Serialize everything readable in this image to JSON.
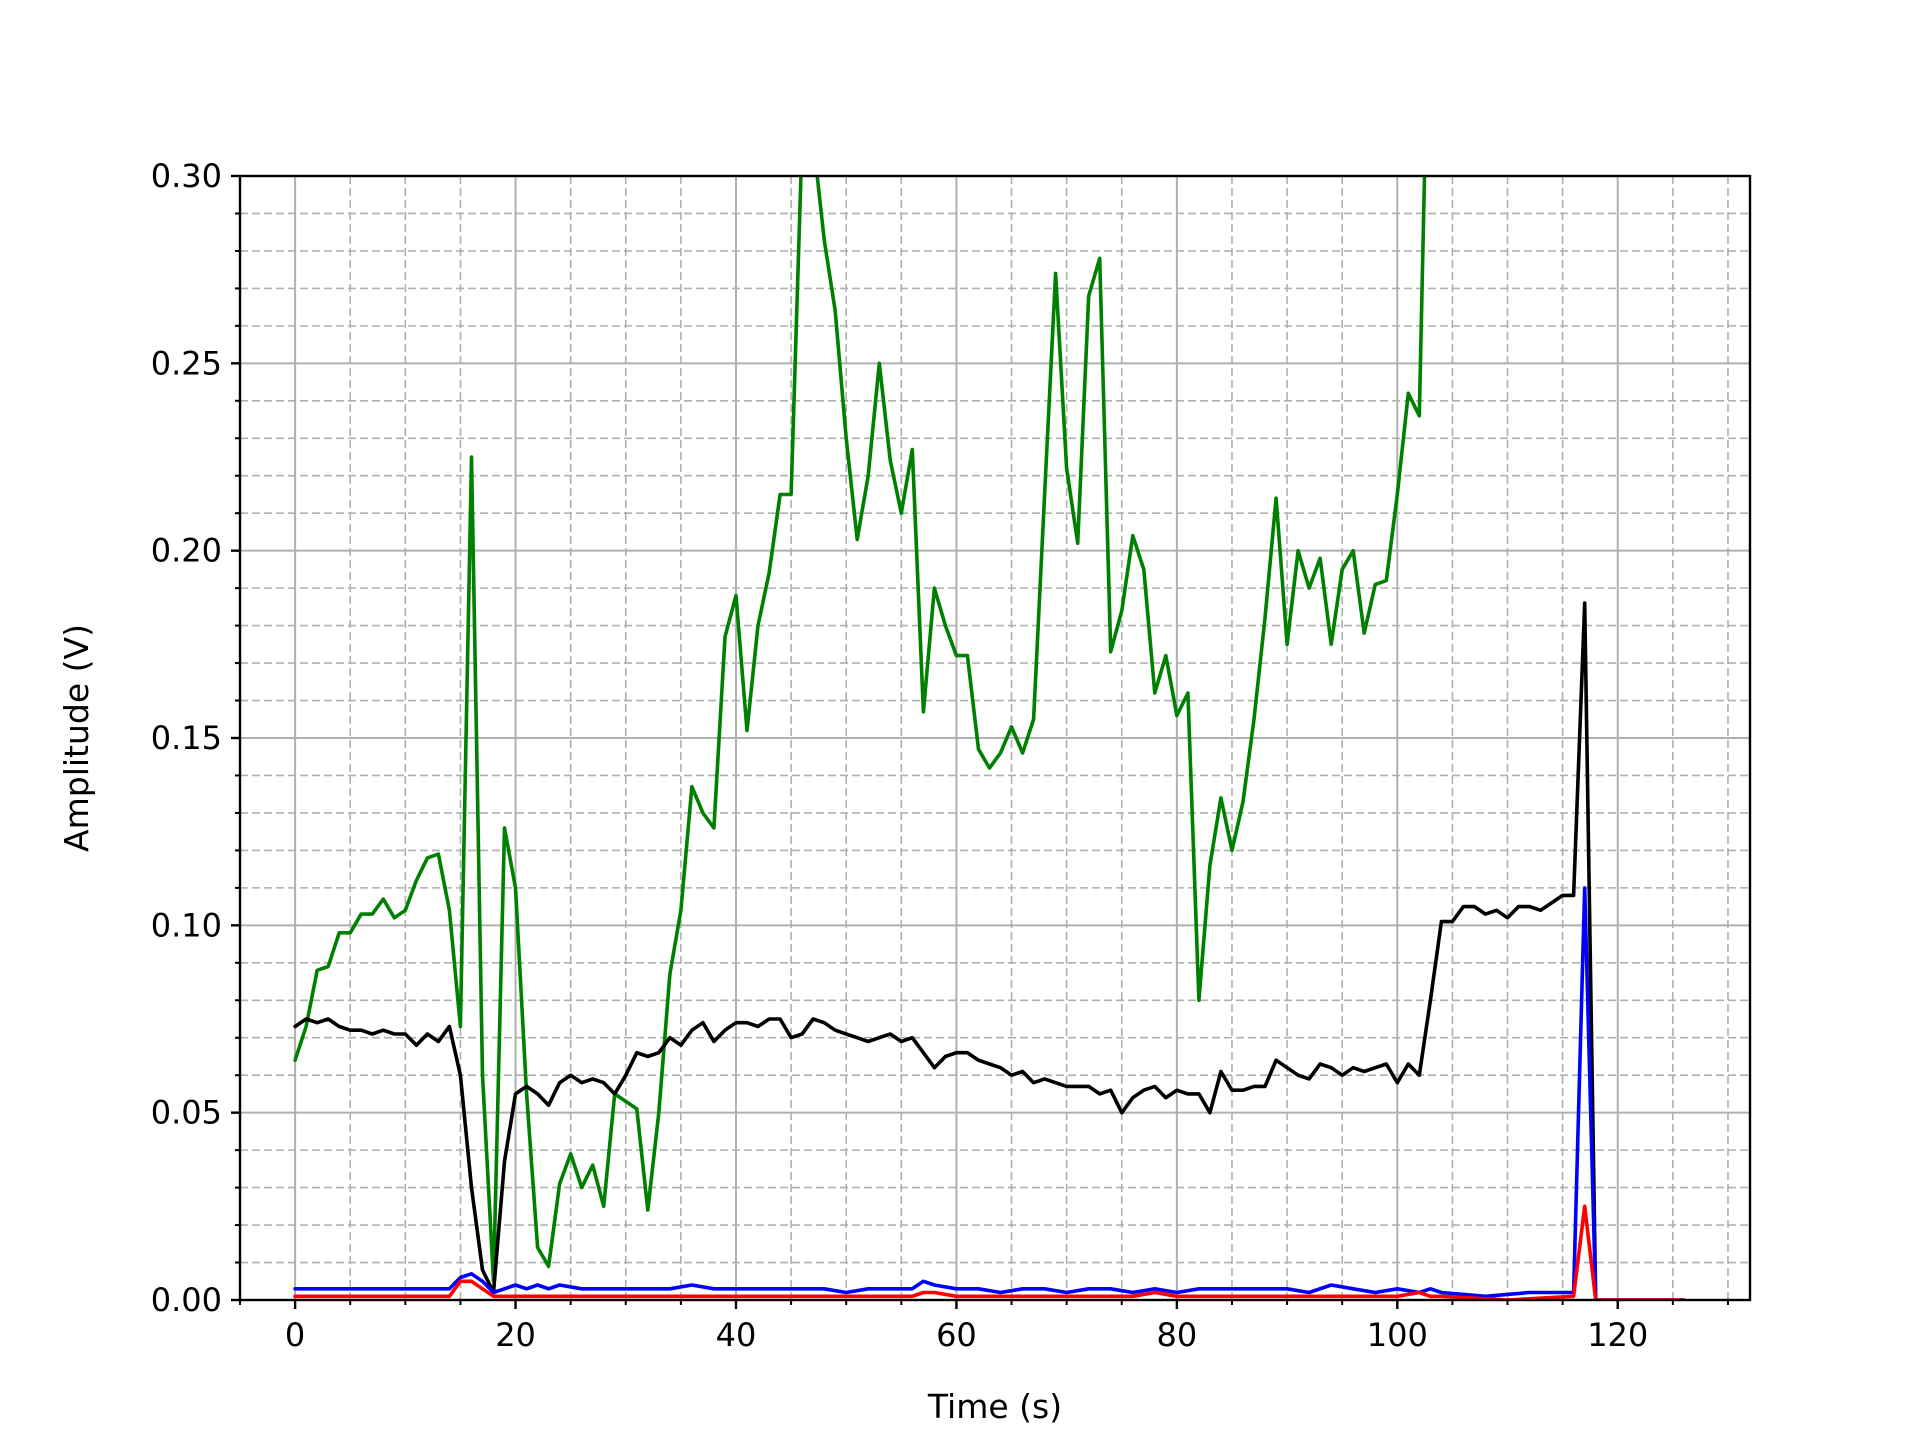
{
  "chart_data": {
    "type": "line",
    "title": "",
    "xlabel": "Time (s)",
    "ylabel": "Amplitude (V)",
    "xlim": [
      -5,
      132
    ],
    "ylim": [
      0,
      0.3
    ],
    "grid": true,
    "grid_minor": true,
    "xticks": [
      0,
      20,
      40,
      60,
      80,
      100,
      120
    ],
    "xtick_labels": [
      "0",
      "20",
      "40",
      "60",
      "80",
      "100",
      "120"
    ],
    "yticks": [
      0,
      0.05,
      0.1,
      0.15,
      0.2,
      0.25,
      0.3
    ],
    "ytick_labels": [
      "0.00",
      "0.05",
      "0.10",
      "0.15",
      "0.20",
      "0.25",
      "0.30"
    ],
    "x_minor_step": 5,
    "y_minor_step": 0.01,
    "series": [
      {
        "name": "green",
        "color": "#008000",
        "x": [
          0,
          1,
          2,
          3,
          4,
          5,
          6,
          7,
          8,
          9,
          10,
          11,
          12,
          13,
          14,
          15,
          16,
          17,
          18,
          19,
          20,
          21,
          22,
          23,
          24,
          25,
          26,
          27,
          28,
          29,
          30,
          31,
          32,
          33,
          34,
          35,
          36,
          37,
          38,
          39,
          40,
          41,
          42,
          43,
          44,
          45,
          46,
          47,
          48,
          49,
          50,
          51,
          52,
          53,
          54,
          55,
          56,
          57,
          58,
          59,
          60,
          61,
          62,
          63,
          64,
          65,
          66,
          67,
          68,
          69,
          70,
          71,
          72,
          73,
          74,
          75,
          76,
          77,
          78,
          79,
          80,
          81,
          82,
          83,
          84,
          85,
          86,
          87,
          88,
          89,
          90,
          91,
          92,
          93,
          94,
          95,
          96,
          97,
          98,
          99,
          100,
          101,
          102,
          102.5
        ],
        "values": [
          0.064,
          0.073,
          0.088,
          0.089,
          0.098,
          0.098,
          0.103,
          0.103,
          0.107,
          0.102,
          0.104,
          0.112,
          0.118,
          0.119,
          0.104,
          0.073,
          0.225,
          0.06,
          0.005,
          0.126,
          0.11,
          0.055,
          0.014,
          0.009,
          0.031,
          0.039,
          0.03,
          0.036,
          0.025,
          0.055,
          0.053,
          0.051,
          0.024,
          0.05,
          0.087,
          0.104,
          0.137,
          0.13,
          0.126,
          0.177,
          0.188,
          0.152,
          0.18,
          0.194,
          0.215,
          0.215,
          0.31,
          0.31,
          0.283,
          0.264,
          0.23,
          0.203,
          0.22,
          0.25,
          0.224,
          0.21,
          0.227,
          0.157,
          0.19,
          0.18,
          0.172,
          0.172,
          0.147,
          0.142,
          0.146,
          0.153,
          0.146,
          0.155,
          0.215,
          0.274,
          0.222,
          0.202,
          0.268,
          0.278,
          0.173,
          0.184,
          0.204,
          0.195,
          0.162,
          0.172,
          0.156,
          0.162,
          0.08,
          0.116,
          0.134,
          0.12,
          0.133,
          0.155,
          0.182,
          0.214,
          0.175,
          0.2,
          0.19,
          0.198,
          0.175,
          0.195,
          0.2,
          0.178,
          0.191,
          0.192,
          0.215,
          0.242,
          0.236,
          0.305
        ]
      },
      {
        "name": "black",
        "color": "#000000",
        "x": [
          0,
          1,
          2,
          3,
          4,
          5,
          6,
          7,
          8,
          9,
          10,
          11,
          12,
          13,
          14,
          15,
          16,
          17,
          18,
          19,
          20,
          21,
          22,
          23,
          24,
          25,
          26,
          27,
          28,
          29,
          30,
          31,
          32,
          33,
          34,
          35,
          36,
          37,
          38,
          39,
          40,
          41,
          42,
          43,
          44,
          45,
          46,
          47,
          48,
          49,
          50,
          51,
          52,
          53,
          54,
          55,
          56,
          57,
          58,
          59,
          60,
          61,
          62,
          63,
          64,
          65,
          66,
          67,
          68,
          69,
          70,
          71,
          72,
          73,
          74,
          75,
          76,
          77,
          78,
          79,
          80,
          81,
          82,
          83,
          84,
          85,
          86,
          87,
          88,
          89,
          90,
          91,
          92,
          93,
          94,
          95,
          96,
          97,
          98,
          99,
          100,
          101,
          102,
          103,
          104,
          105,
          106,
          107,
          108,
          109,
          110,
          111,
          112,
          113,
          114,
          115,
          116,
          117,
          118
        ],
        "values": [
          0.073,
          0.075,
          0.074,
          0.075,
          0.073,
          0.072,
          0.072,
          0.071,
          0.072,
          0.071,
          0.071,
          0.068,
          0.071,
          0.069,
          0.073,
          0.06,
          0.03,
          0.008,
          0.002,
          0.037,
          0.055,
          0.057,
          0.055,
          0.052,
          0.058,
          0.06,
          0.058,
          0.059,
          0.058,
          0.055,
          0.06,
          0.066,
          0.065,
          0.066,
          0.07,
          0.068,
          0.072,
          0.074,
          0.069,
          0.072,
          0.074,
          0.074,
          0.073,
          0.075,
          0.075,
          0.07,
          0.071,
          0.075,
          0.074,
          0.072,
          0.071,
          0.07,
          0.069,
          0.07,
          0.071,
          0.069,
          0.07,
          0.066,
          0.062,
          0.065,
          0.066,
          0.066,
          0.064,
          0.063,
          0.062,
          0.06,
          0.061,
          0.058,
          0.059,
          0.058,
          0.057,
          0.057,
          0.057,
          0.055,
          0.056,
          0.05,
          0.054,
          0.056,
          0.057,
          0.054,
          0.056,
          0.055,
          0.055,
          0.05,
          0.061,
          0.056,
          0.056,
          0.057,
          0.057,
          0.064,
          0.062,
          0.06,
          0.059,
          0.063,
          0.062,
          0.06,
          0.062,
          0.061,
          0.062,
          0.063,
          0.058,
          0.063,
          0.06,
          0.08,
          0.101,
          0.101,
          0.105,
          0.105,
          0.103,
          0.104,
          0.102,
          0.105,
          0.105,
          0.104,
          0.106,
          0.108,
          0.108,
          0.186,
          0.0
        ]
      },
      {
        "name": "blue",
        "color": "#0000ff",
        "x": [
          0,
          2,
          4,
          6,
          8,
          10,
          12,
          14,
          15,
          16,
          17,
          18,
          19,
          20,
          21,
          22,
          23,
          24,
          26,
          28,
          30,
          32,
          34,
          36,
          38,
          40,
          42,
          44,
          46,
          48,
          50,
          52,
          54,
          56,
          57,
          58,
          60,
          62,
          64,
          66,
          68,
          70,
          72,
          74,
          76,
          78,
          80,
          82,
          84,
          86,
          88,
          90,
          92,
          94,
          96,
          98,
          100,
          102,
          103,
          104,
          108,
          112,
          116,
          117,
          118,
          120,
          126
        ],
        "values": [
          0.003,
          0.003,
          0.003,
          0.003,
          0.003,
          0.003,
          0.003,
          0.003,
          0.006,
          0.007,
          0.005,
          0.002,
          0.003,
          0.004,
          0.003,
          0.004,
          0.003,
          0.004,
          0.003,
          0.003,
          0.003,
          0.003,
          0.003,
          0.004,
          0.003,
          0.003,
          0.003,
          0.003,
          0.003,
          0.003,
          0.002,
          0.003,
          0.003,
          0.003,
          0.005,
          0.004,
          0.003,
          0.003,
          0.002,
          0.003,
          0.003,
          0.002,
          0.003,
          0.003,
          0.002,
          0.003,
          0.002,
          0.003,
          0.003,
          0.003,
          0.003,
          0.003,
          0.002,
          0.004,
          0.003,
          0.002,
          0.003,
          0.002,
          0.003,
          0.002,
          0.001,
          0.002,
          0.002,
          0.11,
          0.0,
          0.0,
          0.0
        ]
      },
      {
        "name": "red",
        "color": "#ff0000",
        "x": [
          0,
          4,
          8,
          12,
          14,
          15,
          16,
          17,
          18,
          20,
          24,
          28,
          32,
          36,
          40,
          44,
          48,
          52,
          56,
          57,
          58,
          60,
          64,
          68,
          72,
          76,
          78,
          80,
          84,
          88,
          92,
          96,
          100,
          102,
          103,
          104,
          110,
          116,
          117,
          118,
          120,
          126
        ],
        "values": [
          0.001,
          0.001,
          0.001,
          0.001,
          0.001,
          0.005,
          0.005,
          0.003,
          0.001,
          0.001,
          0.001,
          0.001,
          0.001,
          0.001,
          0.001,
          0.001,
          0.001,
          0.001,
          0.001,
          0.002,
          0.002,
          0.001,
          0.001,
          0.001,
          0.001,
          0.001,
          0.002,
          0.001,
          0.001,
          0.001,
          0.001,
          0.001,
          0.001,
          0.002,
          0.001,
          0.001,
          0.0,
          0.001,
          0.025,
          0.0,
          0.0,
          0.0
        ]
      }
    ]
  }
}
